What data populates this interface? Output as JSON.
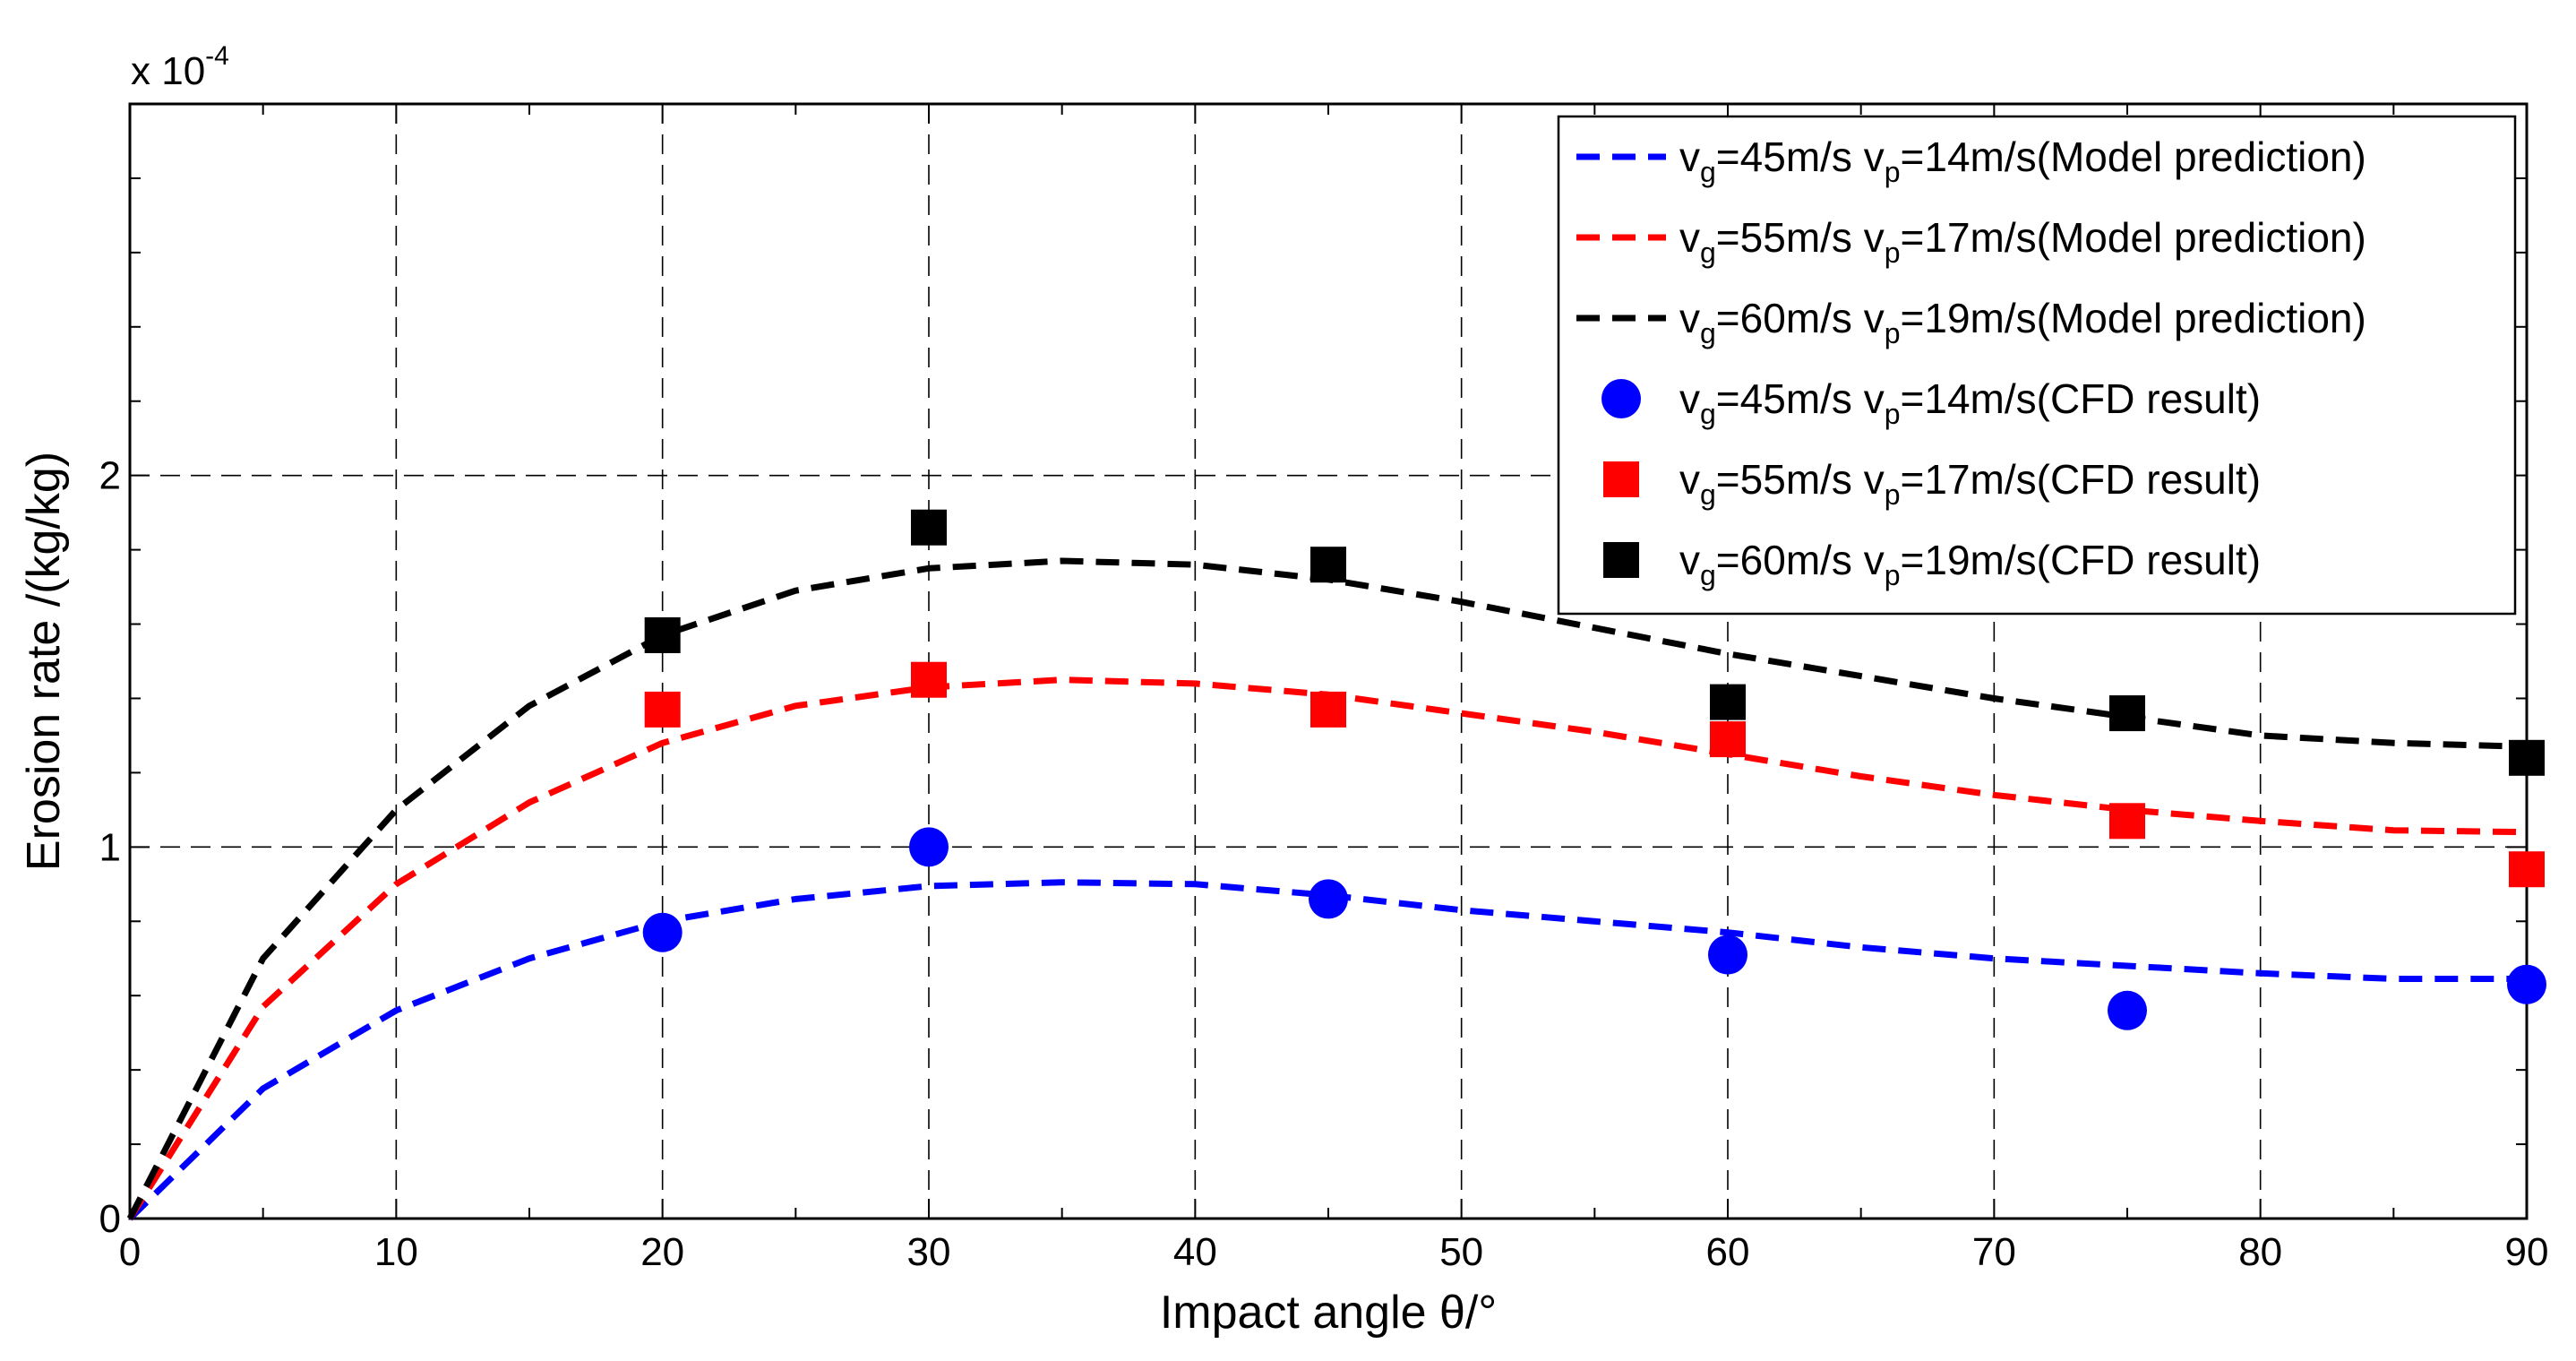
{
  "chart_data": {
    "type": "line",
    "title": "",
    "xlabel": "Impact angle θ/°",
    "ylabel": "Erosion rate /(kg/kg)",
    "y_exponent_label": "x 10",
    "y_exponent_power": "-4",
    "xlim": [
      0,
      90
    ],
    "ylim": [
      0,
      3
    ],
    "xticks": [
      "0",
      "10",
      "20",
      "30",
      "40",
      "50",
      "60",
      "70",
      "80",
      "90"
    ],
    "yticks": [
      "0",
      "1",
      "2"
    ],
    "xtick_values": [
      0,
      10,
      20,
      30,
      40,
      50,
      60,
      70,
      80,
      90
    ],
    "ytick_values": [
      0,
      1,
      2
    ],
    "grid": true,
    "legend_position": "top-right",
    "series": [
      {
        "name": "vg=45m/s vp=14m/s(Model prediction)",
        "vg": "45m/s",
        "vp": "14m/s",
        "label_tail": "(Model prediction)",
        "kind": "line",
        "color": "#0000ff",
        "x": [
          0,
          5,
          10,
          15,
          20,
          25,
          30,
          35,
          40,
          45,
          50,
          55,
          60,
          65,
          70,
          75,
          80,
          85,
          90
        ],
        "y": [
          0,
          0.35,
          0.56,
          0.7,
          0.8,
          0.86,
          0.895,
          0.905,
          0.9,
          0.87,
          0.83,
          0.8,
          0.77,
          0.73,
          0.7,
          0.68,
          0.66,
          0.645,
          0.645
        ]
      },
      {
        "name": "vg=55m/s vp=17m/s(Model prediction)",
        "vg": "55m/s",
        "vp": "17m/s",
        "label_tail": "(Model prediction)",
        "kind": "line",
        "color": "#ff0000",
        "x": [
          0,
          5,
          10,
          15,
          20,
          25,
          30,
          35,
          40,
          45,
          50,
          55,
          60,
          65,
          70,
          75,
          80,
          85,
          90
        ],
        "y": [
          0,
          0.57,
          0.9,
          1.12,
          1.28,
          1.38,
          1.43,
          1.45,
          1.44,
          1.41,
          1.36,
          1.31,
          1.25,
          1.19,
          1.14,
          1.1,
          1.07,
          1.045,
          1.04
        ]
      },
      {
        "name": "vg=60m/s vp=19m/s(Model prediction)",
        "vg": "60m/s",
        "vp": "19m/s",
        "label_tail": "(Model prediction)",
        "kind": "line",
        "color": "#000000",
        "x": [
          0,
          5,
          10,
          15,
          20,
          25,
          30,
          35,
          40,
          45,
          50,
          55,
          60,
          65,
          70,
          75,
          80,
          85,
          90
        ],
        "y": [
          0,
          0.7,
          1.1,
          1.38,
          1.57,
          1.69,
          1.75,
          1.77,
          1.76,
          1.72,
          1.66,
          1.59,
          1.52,
          1.46,
          1.4,
          1.35,
          1.3,
          1.28,
          1.27
        ]
      },
      {
        "name": "vg=45m/s vp=14m/s(CFD result)",
        "vg": "45m/s",
        "vp": "14m/s",
        "label_tail": "(CFD result)",
        "kind": "marker-circle",
        "color": "#0000ff",
        "x": [
          20,
          30,
          45,
          60,
          75,
          90
        ],
        "y": [
          0.77,
          1.0,
          0.86,
          0.71,
          0.56,
          0.63
        ]
      },
      {
        "name": "vg=55m/s vp=17m/s(CFD result)",
        "vg": "55m/s",
        "vp": "17m/s",
        "label_tail": "(CFD result)",
        "kind": "marker-square",
        "color": "#ff0000",
        "x": [
          20,
          30,
          45,
          60,
          75,
          90
        ],
        "y": [
          1.37,
          1.45,
          1.37,
          1.29,
          1.07,
          0.94
        ]
      },
      {
        "name": "vg=60m/s vp=19m/s(CFD result)",
        "vg": "60m/s",
        "vp": "19m/s",
        "label_tail": "(CFD result)",
        "kind": "marker-square",
        "color": "#000000",
        "x": [
          20,
          30,
          45,
          60,
          75,
          90
        ],
        "y": [
          1.57,
          1.86,
          1.76,
          1.39,
          1.36,
          1.24
        ]
      }
    ]
  }
}
